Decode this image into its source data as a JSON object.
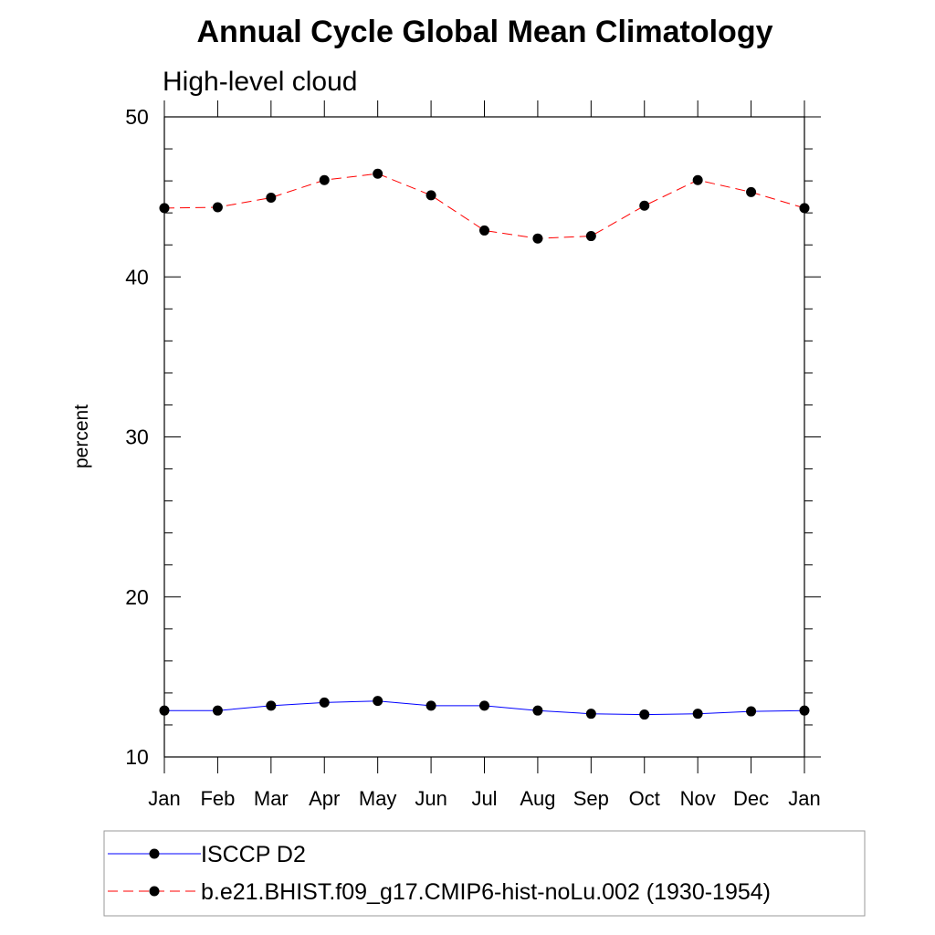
{
  "chart_data": {
    "type": "line",
    "title": "Annual Cycle Global Mean Climatology",
    "subtitle": "High-level cloud",
    "xlabel": "",
    "ylabel": "percent",
    "categories": [
      "Jan",
      "Feb",
      "Mar",
      "Apr",
      "May",
      "Jun",
      "Jul",
      "Aug",
      "Sep",
      "Oct",
      "Nov",
      "Dec",
      "Jan"
    ],
    "ylim": [
      10,
      50
    ],
    "yticks": [
      "10",
      "20",
      "30",
      "40",
      "50"
    ],
    "grid": false,
    "legend_placement": "bottom",
    "series": [
      {
        "name": "ISCCP D2",
        "color": "#0000ff",
        "line_style": "solid",
        "marker": "filled-circle",
        "values": [
          12.9,
          12.9,
          13.2,
          13.4,
          13.5,
          13.2,
          13.2,
          12.9,
          12.7,
          12.65,
          12.7,
          12.85,
          12.9
        ]
      },
      {
        "name": "b.e21.BHIST.f09_g17.CMIP6-hist-noLu.002 (1930-1954)",
        "color": "#ff0000",
        "line_style": "dashed",
        "marker": "filled-circle",
        "values": [
          44.3,
          44.35,
          44.95,
          46.05,
          46.45,
          45.1,
          42.9,
          42.4,
          42.55,
          44.45,
          46.05,
          45.3,
          44.3
        ]
      }
    ]
  }
}
